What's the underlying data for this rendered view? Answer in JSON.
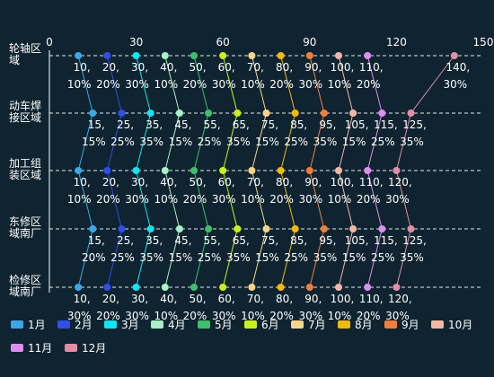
{
  "chart_data": {
    "type": "line",
    "orientation": "horizontal",
    "categories": [
      "轮轴区域",
      "动车焊接区域",
      "加工组装区域",
      "东修区域南厂",
      "检修区域南厂"
    ],
    "category_lines": [
      [
        "轮轴区",
        "域"
      ],
      [
        "动车焊",
        "接区域"
      ],
      [
        "加工组",
        "装区域"
      ],
      [
        "东修区",
        "域南厂"
      ],
      [
        "检修区",
        "域南厂"
      ]
    ],
    "x_axis": {
      "min": 0,
      "max": 150,
      "ticks": [
        0,
        30,
        60,
        90,
        120,
        150
      ]
    },
    "grid": true,
    "legend_position": "bottom-left",
    "series": [
      {
        "name": "1月",
        "color": "#3ba7e8",
        "values": [
          10,
          15,
          10,
          15,
          10
        ],
        "labels": [
          "10,",
          "15,",
          "10,",
          "15,",
          "10,"
        ],
        "pct": [
          "10%",
          "15%",
          "10%",
          "20%",
          "30%"
        ]
      },
      {
        "name": "2月",
        "color": "#2f4fe8",
        "values": [
          20,
          25,
          20,
          25,
          20
        ],
        "labels": [
          "20,",
          "25,",
          "20,",
          "25,",
          "20,"
        ],
        "pct": [
          "20%",
          "25%",
          "20%",
          "25%",
          "20%"
        ]
      },
      {
        "name": "3月",
        "color": "#11e4f0",
        "values": [
          30,
          35,
          30,
          35,
          30
        ],
        "labels": [
          "30,",
          "35,",
          "30,",
          "35,",
          "30,"
        ],
        "pct": [
          "30%",
          "35%",
          "30%",
          "35%",
          "30%"
        ]
      },
      {
        "name": "4月",
        "color": "#a8f0c6",
        "values": [
          40,
          45,
          40,
          45,
          40
        ],
        "labels": [
          "40,",
          "45,",
          "40,",
          "45,",
          "40,"
        ],
        "pct": [
          "10%",
          "15%",
          "10%",
          "15%",
          "10%"
        ]
      },
      {
        "name": "5月",
        "color": "#3fbf6a",
        "values": [
          50,
          55,
          50,
          55,
          50
        ],
        "labels": [
          "50,",
          "55,",
          "50,",
          "55,",
          "50,"
        ],
        "pct": [
          "20%",
          "25%",
          "20%",
          "25%",
          "20%"
        ]
      },
      {
        "name": "6月",
        "color": "#c8f01e",
        "values": [
          60,
          65,
          60,
          65,
          60
        ],
        "labels": [
          "60,",
          "65,",
          "60,",
          "65,",
          "60,"
        ],
        "pct": [
          "30%",
          "35%",
          "30%",
          "35%",
          "30%"
        ]
      },
      {
        "name": "7月",
        "color": "#f6d58a",
        "values": [
          70,
          75,
          70,
          75,
          70
        ],
        "labels": [
          "70,",
          "75,",
          "70,",
          "75,",
          "70,"
        ],
        "pct": [
          "10%",
          "15%",
          "10%",
          "15%",
          "10%"
        ]
      },
      {
        "name": "8月",
        "color": "#f2b90e",
        "values": [
          80,
          85,
          80,
          85,
          80
        ],
        "labels": [
          "80,",
          "85,",
          "80,",
          "85,",
          "80,"
        ],
        "pct": [
          "20%",
          "25%",
          "20%",
          "25%",
          "20%"
        ]
      },
      {
        "name": "9月",
        "color": "#f07f3c",
        "values": [
          90,
          95,
          90,
          95,
          90
        ],
        "labels": [
          "90,",
          "95,",
          "90,",
          "95,",
          "90,"
        ],
        "pct": [
          "30%",
          "35%",
          "30%",
          "35%",
          "30%"
        ]
      },
      {
        "name": "10月",
        "color": "#f4b7a6",
        "values": [
          100,
          105,
          100,
          105,
          100
        ],
        "labels": [
          "100,",
          "105,",
          "100,",
          "105,",
          "100,"
        ],
        "pct": [
          "10%",
          "15%",
          "10%",
          "15%",
          "10%"
        ]
      },
      {
        "name": "11月",
        "color": "#dc8ef0",
        "values": [
          110,
          115,
          110,
          115,
          110
        ],
        "labels": [
          "110,",
          "115,",
          "110,",
          "115,",
          "110,"
        ],
        "pct": [
          "20%",
          "25%",
          "20%",
          "25%",
          "20%"
        ]
      },
      {
        "name": "12月",
        "color": "#e28ea5",
        "values": [
          140,
          125,
          120,
          125,
          120
        ],
        "labels": [
          "140,",
          "125,",
          "120,",
          "125,",
          "120,"
        ],
        "pct": [
          "30%",
          "35%",
          "30%",
          "35%",
          "30%"
        ]
      }
    ]
  }
}
